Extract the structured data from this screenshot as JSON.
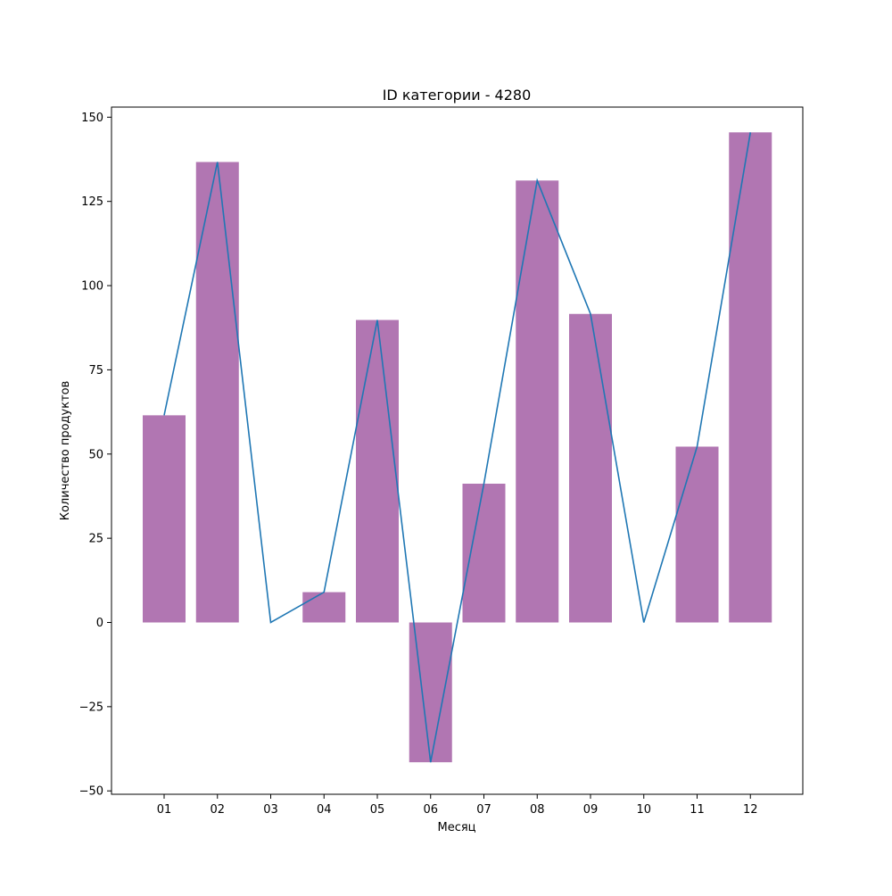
{
  "chart_data": {
    "type": "bar",
    "title": "ID категории - 4280",
    "xlabel": "Месяц",
    "ylabel": "Количество продуктов",
    "categories": [
      "01",
      "02",
      "03",
      "04",
      "05",
      "06",
      "07",
      "08",
      "09",
      "10",
      "11",
      "12"
    ],
    "series": [
      {
        "kind": "bar",
        "color": "#b176b2",
        "values": [
          61.5,
          136.7,
          0,
          9,
          89.8,
          -41.5,
          41.2,
          131.2,
          91.6,
          0,
          52.2,
          145.5
        ]
      },
      {
        "kind": "line",
        "color": "#1f77b4",
        "values": [
          61.5,
          136.7,
          0,
          9,
          89.8,
          -41.5,
          41.2,
          131.2,
          91.6,
          0,
          52.2,
          145.5
        ]
      }
    ],
    "yticks": [
      -50,
      -25,
      0,
      25,
      50,
      75,
      100,
      125,
      150
    ],
    "ylim": [
      -51,
      153
    ],
    "grid": false,
    "legend": "none"
  }
}
